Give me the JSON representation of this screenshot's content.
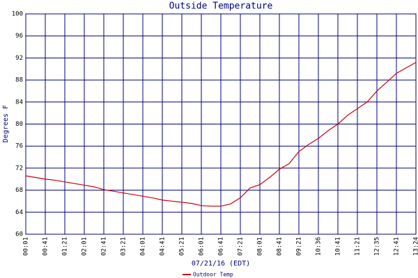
{
  "chart_data": {
    "type": "line",
    "title": "Outside Temperature",
    "x_label": "07/21/16 (EDT)",
    "y_label": "Degrees F",
    "categories": [
      "00:01",
      null,
      "00:41",
      null,
      "01:21",
      null,
      "02:01",
      null,
      "02:41",
      null,
      "03:21",
      null,
      "04:01",
      null,
      "04:41",
      null,
      "05:21",
      null,
      "06:01",
      null,
      "06:41",
      null,
      "07:21",
      null,
      "08:01",
      null,
      "08:41",
      null,
      "09:21",
      null,
      "10:36",
      null,
      "10:41",
      null,
      "11:21",
      null,
      "12:35",
      null,
      "12:41",
      null,
      "13:24"
    ],
    "series": [
      {
        "name": "Outdoor Temp",
        "color": "#cc0000",
        "values": [
          70.6,
          70.3,
          70.0,
          69.8,
          69.5,
          69.2,
          68.9,
          68.6,
          68.1,
          67.8,
          67.5,
          67.2,
          66.9,
          66.6,
          66.2,
          66.0,
          65.8,
          65.6,
          65.2,
          65.1,
          65.1,
          65.5,
          66.6,
          68.4,
          69.0,
          70.3,
          71.8,
          72.8,
          75.0,
          76.3,
          77.4,
          78.8,
          80.0,
          81.6,
          82.8,
          84.0,
          86.0,
          87.6,
          89.2,
          90.2,
          91.2
        ]
      }
    ],
    "ylim": [
      60,
      100
    ],
    "yticks": [
      60,
      64,
      68,
      72,
      76,
      80,
      84,
      88,
      92,
      96,
      100
    ],
    "grid": true,
    "grid_color": "#000080"
  }
}
